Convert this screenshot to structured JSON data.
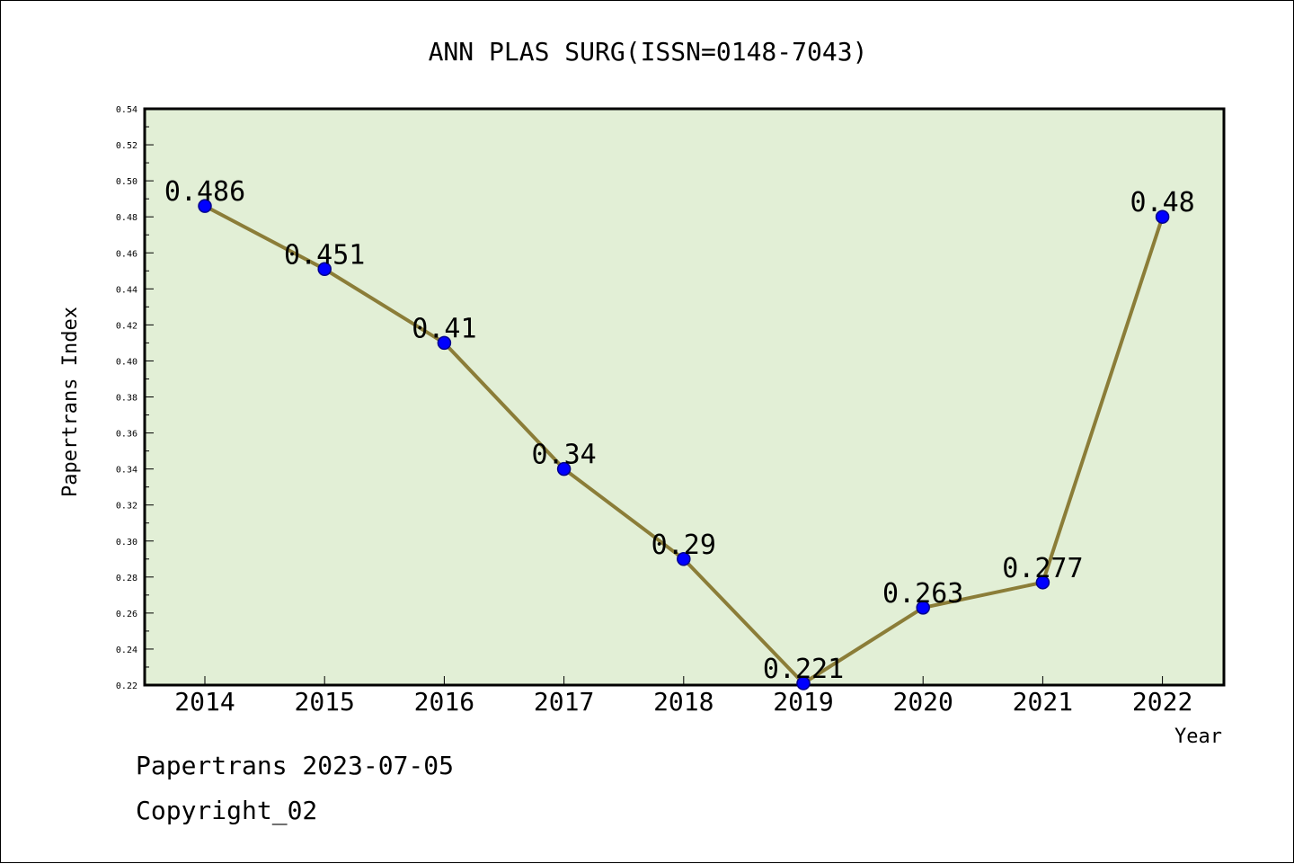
{
  "colors": {
    "plot_background": "#e2efd6",
    "line": "#8b7d38",
    "marker": "#0000ff",
    "marker_edge": "#00008b",
    "axis": "#000000"
  },
  "footer": {
    "line1": "Papertrans 2023-07-05",
    "line2": "Copyright_02"
  },
  "chart_data": {
    "type": "line",
    "title": "ANN PLAS SURG(ISSN=0148-7043)",
    "xlabel": "Year",
    "ylabel": "Papertrans Index",
    "categories": [
      "2014",
      "2015",
      "2016",
      "2017",
      "2018",
      "2019",
      "2020",
      "2021",
      "2022"
    ],
    "values": [
      0.486,
      0.451,
      0.41,
      0.34,
      0.29,
      0.221,
      0.263,
      0.277,
      0.48
    ],
    "data_labels": [
      "0.486",
      "0.451",
      "0.41",
      "0.34",
      "0.29",
      "0.221",
      "0.263",
      "0.277",
      "0.48"
    ],
    "ylim": [
      0.22,
      0.54
    ],
    "yticks": [
      "0.22",
      "0.24",
      "0.26",
      "0.28",
      "0.30",
      "0.32",
      "0.34",
      "0.36",
      "0.38",
      "0.40",
      "0.42",
      "0.44",
      "0.46",
      "0.48",
      "0.50",
      "0.52",
      "0.54"
    ],
    "yminor_step": 0.01,
    "grid": false,
    "legend": "none"
  }
}
